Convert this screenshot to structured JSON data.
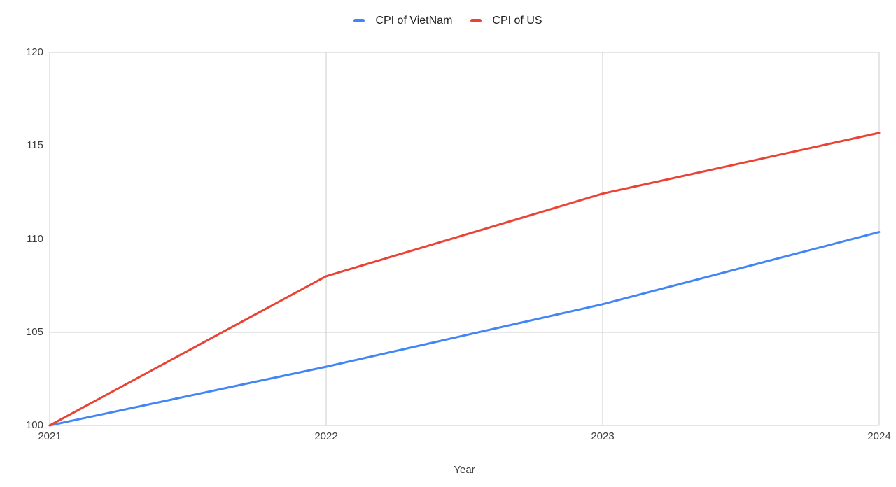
{
  "chart_data": {
    "type": "line",
    "title": "",
    "x_categories": [
      "2021",
      "2022",
      "2023",
      "2024"
    ],
    "series": [
      {
        "name": "CPI of VietNam",
        "color": "#4285F4",
        "values": [
          100,
          103.15,
          106.5,
          110.37
        ]
      },
      {
        "name": "CPI of US",
        "color": "#EA4335",
        "values": [
          100,
          108.0,
          112.43,
          115.69
        ]
      }
    ],
    "xlabel": "Year",
    "ylabel": "",
    "ylim": [
      100,
      120
    ],
    "yticks": [
      100,
      105,
      110,
      115,
      120
    ],
    "grid": true,
    "legend_position": "top",
    "colors": {
      "grid": "#cccccc",
      "axis_text": "#3c3c3c",
      "legend_text": "#202124",
      "background": "#ffffff"
    }
  }
}
